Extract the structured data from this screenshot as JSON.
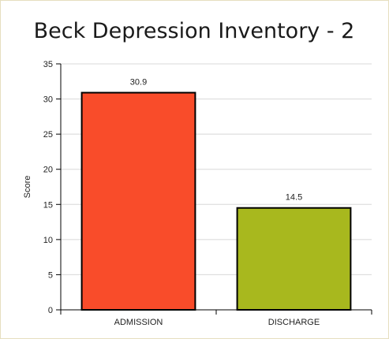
{
  "chart_data": {
    "type": "bar",
    "title": "Beck Depression Inventory - 2",
    "ylabel": "Score",
    "xlabel": "",
    "categories": [
      "ADMISSION",
      "DISCHARGE"
    ],
    "values": [
      30.9,
      14.5
    ],
    "data_labels": [
      "30.9",
      "14.5"
    ],
    "colors": [
      "#f94c2a",
      "#a8b81e"
    ],
    "ylim": [
      0,
      35
    ],
    "yticks": [
      0,
      5,
      10,
      15,
      20,
      25,
      30,
      35
    ],
    "ytick_labels": [
      "0",
      "5",
      "10",
      "15",
      "20",
      "25",
      "30",
      "35"
    ],
    "grid": true,
    "legend": "none"
  },
  "style": {
    "frame_border": "#e6dfbf",
    "grid_color": "#d8d8d8",
    "bar_stroke": "#000000"
  }
}
